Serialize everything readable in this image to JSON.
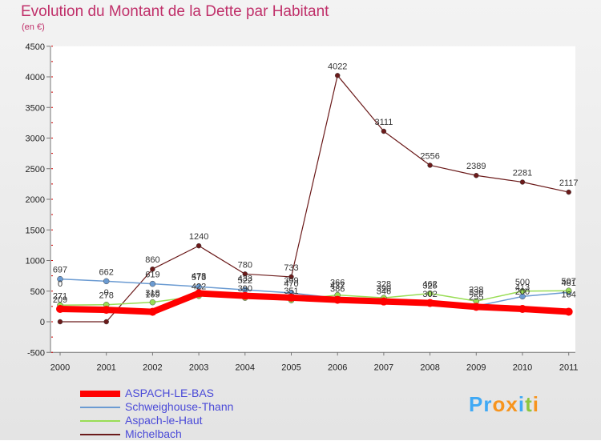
{
  "chart_data": {
    "type": "line",
    "title": "Evolution du Montant de la Dette par Habitant",
    "subtitle": "(en €)",
    "xlabel": "",
    "ylabel": "",
    "ylim": [
      -500,
      4500
    ],
    "yticks": [
      -500,
      0,
      500,
      1000,
      1500,
      2000,
      2500,
      3000,
      3500,
      4000,
      4500
    ],
    "categories": [
      "2000",
      "2001",
      "2002",
      "2003",
      "2004",
      "2005",
      "2006",
      "2007",
      "2008",
      "2009",
      "2010",
      "2011"
    ],
    "series": [
      {
        "name": "ASPACH-LE-BAS",
        "color": "#ff0000",
        "values": [
          209,
          195,
          162,
          464,
          423,
          394,
          358,
          331,
          306,
          244,
          209,
          164
        ],
        "labels": [
          "209",
          "",
          "",
          "",
          "",
          "",
          "",
          "",
          "",
          "",
          "",
          ""
        ]
      },
      {
        "name": "Schweighouse-Thann",
        "color": "#6b9bd2",
        "values": [
          697,
          662,
          619,
          573,
          522,
          470,
          386,
          346,
          302,
          255,
          413,
          481
        ],
        "labels": [
          "697",
          "662",
          "619",
          "573",
          "522",
          "470",
          "386",
          "346",
          "302",
          "255",
          "413",
          "481"
        ]
      },
      {
        "name": "Aspach-le-Haut",
        "color": "#99dd55",
        "values": [
          271,
          278,
          318,
          422,
          390,
          351,
          437,
          390,
          462,
          336,
          500,
          507
        ],
        "labels": [
          "271",
          "278",
          "318",
          "422",
          "390",
          "351",
          "437",
          "390",
          "462",
          "336",
          "500",
          "507"
        ]
      },
      {
        "name": "Michelbach",
        "color": "#6b1a1a",
        "values": [
          0,
          0,
          860,
          1240,
          780,
          733,
          4022,
          3111,
          2556,
          2389,
          2281,
          2117
        ],
        "labels": [
          "",
          "",
          "860",
          "1240",
          "780",
          "733",
          "4022",
          "3111",
          "2556",
          "2389",
          "2281",
          "2117"
        ]
      }
    ],
    "extra_labels": [
      "0",
      "0",
      "169",
      "478",
      "433",
      "399",
      "366",
      "328",
      "325",
      "238",
      "200",
      "164"
    ],
    "legend_position": "bottom-left",
    "grid": false
  },
  "brand": {
    "letters": [
      "P",
      "r",
      "o",
      "x",
      "i",
      "t",
      "i"
    ],
    "colors": [
      "#3fa9f5",
      "#3fa9f5",
      "#f7941d",
      "#f7941d",
      "#3fa9f5",
      "#8dc63f",
      "#f7941d"
    ]
  }
}
